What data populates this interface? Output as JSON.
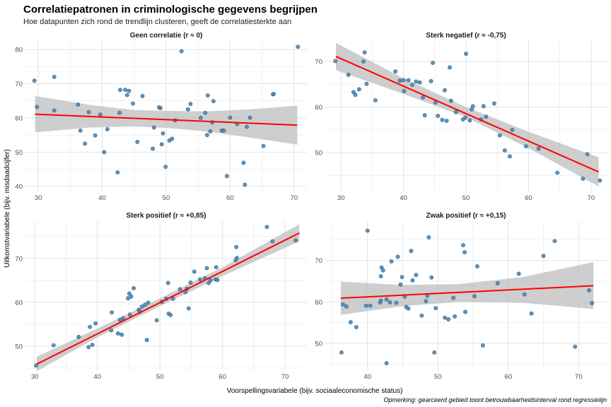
{
  "title": "Correlatiepatronen in criminologische gegevens begrijpen",
  "subtitle": "Hoe datapunten zich rond de trendlijn clusteren, geeft de correlatiesterkte aan",
  "caption": "Opmerking: gearceerd gebied toont betrouwbaarheidsinterval rond regressielijn",
  "colors": {
    "point": "#4f88b5",
    "point_edge": "#2f5f85",
    "line": "#ff0000",
    "band": "#bdbdbd",
    "grid": "#e3e3e3"
  },
  "chart_data": {
    "type": "scatter",
    "xlabel": "Voorspellingsvariabele (bijv. sociaaleconomische status)",
    "ylabel": "Uitkomstvariabele (bijv. misdaadcijfer)",
    "legend": "none",
    "grid": true,
    "panels": [
      {
        "name": "Geen correlatie (r ≈ 0)",
        "xlim": [
          28,
          72
        ],
        "ylim": [
          38.5,
          82.5
        ],
        "xticks": [
          30,
          40,
          50,
          60,
          70
        ],
        "yticks": [
          40,
          50,
          60,
          70,
          80
        ],
        "fit": {
          "x": [
            29.5,
            70.5
          ],
          "y": [
            61.1,
            57.9
          ]
        },
        "band": [
          {
            "x": 29.5,
            "lo": 55.8,
            "hi": 66.4
          },
          {
            "x": 38,
            "lo": 57.2,
            "hi": 63.8
          },
          {
            "x": 45,
            "lo": 57.5,
            "hi": 62.3
          },
          {
            "x": 50,
            "lo": 57.1,
            "hi": 62.1
          },
          {
            "x": 56,
            "lo": 56.1,
            "hi": 61.9
          },
          {
            "x": 63,
            "lo": 54.3,
            "hi": 62.5
          },
          {
            "x": 70.5,
            "lo": 52.2,
            "hi": 63.6
          }
        ],
        "points": [
          [
            29.4,
            70.9
          ],
          [
            29.8,
            63.2
          ],
          [
            32.5,
            72.0
          ],
          [
            32.5,
            62.2
          ],
          [
            36.2,
            63.9
          ],
          [
            36.6,
            56.3
          ],
          [
            37.3,
            52.5
          ],
          [
            37.9,
            61.7
          ],
          [
            38.9,
            54.9
          ],
          [
            39.7,
            61.0
          ],
          [
            40.3,
            50.0
          ],
          [
            40.8,
            56.7
          ],
          [
            42.4,
            44.1
          ],
          [
            42.7,
            61.5
          ],
          [
            42.8,
            68.2
          ],
          [
            43.6,
            68.2
          ],
          [
            43.9,
            66.7
          ],
          [
            44.2,
            67.9
          ],
          [
            44.8,
            64.2
          ],
          [
            45.5,
            53.0
          ],
          [
            46.3,
            66.4
          ],
          [
            47.9,
            51.0
          ],
          [
            48.1,
            57.2
          ],
          [
            48.9,
            63.1
          ],
          [
            49.1,
            62.9
          ],
          [
            49.3,
            52.3
          ],
          [
            49.5,
            55.5
          ],
          [
            49.9,
            45.7
          ],
          [
            50.5,
            53.4
          ],
          [
            50.9,
            53.9
          ],
          [
            51.4,
            59.3
          ],
          [
            52.4,
            79.5
          ],
          [
            53.4,
            62.5
          ],
          [
            53.8,
            64.1
          ],
          [
            55.4,
            60.0
          ],
          [
            56.1,
            61.5
          ],
          [
            56.4,
            55.0
          ],
          [
            56.5,
            66.6
          ],
          [
            56.9,
            56.1
          ],
          [
            57.2,
            58.7
          ],
          [
            57.4,
            64.9
          ],
          [
            58.7,
            56.3
          ],
          [
            59.0,
            56.3
          ],
          [
            59.5,
            43.0
          ],
          [
            60.0,
            60.1
          ],
          [
            61.1,
            58.2
          ],
          [
            62.1,
            46.9
          ],
          [
            62.3,
            40.5
          ],
          [
            62.6,
            57.4
          ],
          [
            63.1,
            60.1
          ],
          [
            65.2,
            51.8
          ],
          [
            66.7,
            66.9
          ],
          [
            66.8,
            67.0
          ],
          [
            70.6,
            80.8
          ]
        ]
      },
      {
        "name": "Sterk negatief (r ≈ -0,75)",
        "xlim": [
          27.5,
          72.5
        ],
        "ylim": [
          41.5,
          74.5
        ],
        "xticks": [
          30,
          40,
          50,
          60,
          70
        ],
        "yticks": [
          50,
          60,
          70
        ],
        "fit": {
          "x": [
            29.2,
            71.2
          ],
          "y": [
            71.1,
            45.8
          ]
        },
        "band": [
          {
            "x": 29.2,
            "lo": 68.1,
            "hi": 74.1
          },
          {
            "x": 40,
            "lo": 62.9,
            "hi": 66.3
          },
          {
            "x": 50,
            "lo": 57.8,
            "hi": 60.0
          },
          {
            "x": 60,
            "lo": 51.0,
            "hi": 54.6
          },
          {
            "x": 71.2,
            "lo": 42.6,
            "hi": 49.0
          }
        ],
        "points": [
          [
            29.1,
            70.1
          ],
          [
            31.2,
            67.1
          ],
          [
            32.0,
            63.3
          ],
          [
            32.3,
            62.7
          ],
          [
            32.9,
            63.9
          ],
          [
            33.6,
            70.0
          ],
          [
            33.8,
            72.0
          ],
          [
            34.1,
            65.1
          ],
          [
            35.5,
            61.5
          ],
          [
            38.7,
            67.8
          ],
          [
            39.4,
            65.8
          ],
          [
            40.0,
            65.9
          ],
          [
            40.1,
            63.5
          ],
          [
            40.8,
            65.9
          ],
          [
            41.4,
            64.9
          ],
          [
            42.0,
            65.6
          ],
          [
            42.6,
            65.4
          ],
          [
            43.1,
            62.1
          ],
          [
            43.4,
            58.2
          ],
          [
            44.4,
            65.7
          ],
          [
            44.7,
            69.7
          ],
          [
            45.1,
            61.0
          ],
          [
            45.5,
            58.1
          ],
          [
            46.2,
            57.2
          ],
          [
            46.6,
            63.7
          ],
          [
            46.9,
            57.0
          ],
          [
            47.4,
            68.7
          ],
          [
            47.6,
            61.4
          ],
          [
            48.4,
            58.9
          ],
          [
            49.5,
            57.3
          ],
          [
            49.9,
            57.7
          ],
          [
            50.0,
            71.7
          ],
          [
            50.6,
            57.1
          ],
          [
            50.9,
            59.5
          ],
          [
            51.1,
            60.2
          ],
          [
            52.4,
            57.3
          ],
          [
            52.8,
            60.2
          ],
          [
            53.2,
            57.9
          ],
          [
            54.5,
            60.8
          ],
          [
            55.4,
            53.8
          ],
          [
            56.2,
            50.5
          ],
          [
            57.0,
            49.2
          ],
          [
            57.4,
            55.0
          ],
          [
            59.6,
            51.4
          ],
          [
            61.6,
            50.9
          ],
          [
            64.6,
            45.6
          ],
          [
            68.7,
            44.3
          ],
          [
            69.4,
            49.7
          ],
          [
            71.4,
            43.9
          ]
        ]
      },
      {
        "name": "Sterk positief (r ≈ +0,85)",
        "xlim": [
          28.5,
          73.5
        ],
        "ylim": [
          44.5,
          78.5
        ],
        "xticks": [
          30,
          40,
          50,
          60,
          70
        ],
        "yticks": [
          50,
          60,
          70
        ],
        "fit": {
          "x": [
            30.3,
            72.3
          ],
          "y": [
            45.9,
            75.8
          ]
        },
        "band": [
          {
            "x": 30.3,
            "lo": 44.3,
            "hi": 47.6
          },
          {
            "x": 40,
            "lo": 52.0,
            "hi": 54.0
          },
          {
            "x": 50,
            "lo": 59.1,
            "hi": 60.9
          },
          {
            "x": 60,
            "lo": 66.0,
            "hi": 68.0
          },
          {
            "x": 72.3,
            "lo": 73.9,
            "hi": 77.8
          }
        ],
        "points": [
          [
            30.2,
            45.6
          ],
          [
            33.0,
            50.2
          ],
          [
            37.0,
            52.1
          ],
          [
            38.6,
            49.8
          ],
          [
            38.8,
            54.4
          ],
          [
            39.2,
            50.3
          ],
          [
            39.7,
            55.2
          ],
          [
            42.2,
            53.6
          ],
          [
            42.3,
            57.7
          ],
          [
            43.3,
            52.9
          ],
          [
            43.6,
            56.0
          ],
          [
            43.9,
            52.6
          ],
          [
            44.1,
            56.4
          ],
          [
            44.9,
            60.9
          ],
          [
            45.1,
            62.0
          ],
          [
            45.2,
            57.2
          ],
          [
            45.4,
            61.3
          ],
          [
            45.8,
            63.2
          ],
          [
            46.6,
            58.3
          ],
          [
            46.8,
            57.9
          ],
          [
            47.1,
            59.0
          ],
          [
            47.6,
            59.4
          ],
          [
            47.9,
            51.4
          ],
          [
            48.1,
            59.9
          ],
          [
            49.5,
            55.9
          ],
          [
            50.3,
            60.1
          ],
          [
            51.0,
            60.8
          ],
          [
            51.3,
            64.4
          ],
          [
            51.4,
            57.4
          ],
          [
            51.7,
            57.1
          ],
          [
            52.1,
            60.8
          ],
          [
            53.2,
            63.0
          ],
          [
            54.1,
            62.3
          ],
          [
            54.3,
            63.1
          ],
          [
            54.6,
            58.6
          ],
          [
            54.9,
            64.5
          ],
          [
            55.5,
            67.0
          ],
          [
            56.4,
            65.2
          ],
          [
            57.2,
            65.5
          ],
          [
            57.5,
            67.8
          ],
          [
            57.8,
            64.4
          ],
          [
            58.1,
            65.0
          ],
          [
            58.9,
            65.2
          ],
          [
            59.0,
            68.0
          ],
          [
            59.2,
            65.1
          ],
          [
            62.1,
            69.6
          ],
          [
            62.3,
            70.1
          ],
          [
            62.2,
            72.6
          ],
          [
            67.1,
            77.2
          ],
          [
            68.0,
            73.9
          ],
          [
            71.7,
            74.1
          ]
        ]
      },
      {
        "name": "Zwak positief (r ≈ +0,15)",
        "xlim": [
          34,
          74
        ],
        "ylim": [
          43.5,
          79.5
        ],
        "xticks": [
          40,
          50,
          60,
          70
        ],
        "yticks": [
          50,
          60,
          70
        ],
        "fit": {
          "x": [
            36.2,
            72.1
          ],
          "y": [
            60.9,
            63.9
          ]
        },
        "band": [
          {
            "x": 36.2,
            "lo": 56.9,
            "hi": 64.9
          },
          {
            "x": 45,
            "lo": 59.0,
            "hi": 64.1
          },
          {
            "x": 53,
            "lo": 60.0,
            "hi": 64.3
          },
          {
            "x": 62,
            "lo": 59.8,
            "hi": 66.0
          },
          {
            "x": 72.1,
            "lo": 58.3,
            "hi": 69.6
          }
        ],
        "points": [
          [
            36.3,
            47.8
          ],
          [
            36.5,
            59.4
          ],
          [
            37.0,
            58.9
          ],
          [
            37.6,
            55.1
          ],
          [
            38.4,
            53.9
          ],
          [
            39.8,
            59.1
          ],
          [
            40.0,
            77.2
          ],
          [
            40.4,
            59.1
          ],
          [
            41.8,
            59.9
          ],
          [
            41.9,
            60.3
          ],
          [
            41.9,
            66.2
          ],
          [
            42.0,
            68.3
          ],
          [
            42.2,
            67.6
          ],
          [
            42.7,
            45.2
          ],
          [
            42.7,
            60.6
          ],
          [
            43.2,
            59.9
          ],
          [
            43.4,
            69.8
          ],
          [
            44.1,
            59.8
          ],
          [
            44.3,
            70.9
          ],
          [
            44.7,
            64.2
          ],
          [
            44.9,
            66.0
          ],
          [
            45.3,
            61.3
          ],
          [
            45.5,
            58.8
          ],
          [
            45.8,
            58.4
          ],
          [
            46.2,
            72.3
          ],
          [
            46.4,
            65.2
          ],
          [
            46.9,
            66.5
          ],
          [
            47.7,
            56.7
          ],
          [
            48.3,
            60.2
          ],
          [
            48.5,
            61.5
          ],
          [
            48.7,
            75.6
          ],
          [
            49.1,
            65.9
          ],
          [
            49.5,
            47.8
          ],
          [
            49.7,
            58.5
          ],
          [
            51.0,
            56.2
          ],
          [
            51.5,
            55.8
          ],
          [
            52.2,
            61.0
          ],
          [
            52.4,
            56.5
          ],
          [
            53.6,
            73.7
          ],
          [
            53.8,
            72.0
          ],
          [
            53.9,
            57.6
          ],
          [
            55.2,
            61.4
          ],
          [
            55.6,
            68.6
          ],
          [
            56.4,
            49.5
          ],
          [
            58.5,
            64.5
          ],
          [
            61.5,
            66.8
          ],
          [
            62.3,
            61.8
          ],
          [
            63.3,
            57.2
          ],
          [
            65.0,
            71.1
          ],
          [
            66.6,
            74.7
          ],
          [
            69.5,
            49.2
          ],
          [
            71.5,
            62.8
          ],
          [
            71.9,
            59.7
          ]
        ]
      }
    ]
  }
}
